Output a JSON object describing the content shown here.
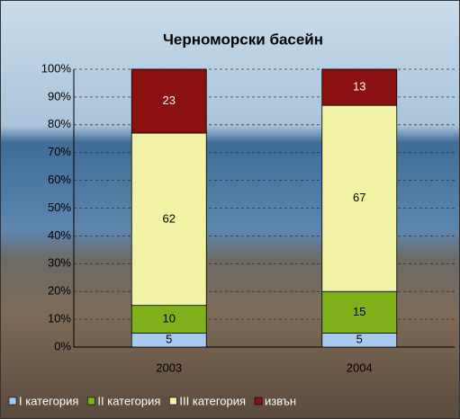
{
  "chart_data": {
    "type": "stacked-bar-100",
    "title": "Черноморски басейн",
    "categories": [
      "2003",
      "2004"
    ],
    "series": [
      {
        "name": "I категория",
        "color": "#a6caf0",
        "values": [
          5,
          5
        ]
      },
      {
        "name": "II категория",
        "color": "#7fb21a",
        "values": [
          10,
          15
        ]
      },
      {
        "name": "III категория",
        "color": "#f3f3a6",
        "values": [
          62,
          67
        ]
      },
      {
        "name": "извън",
        "color": "#8b1010",
        "values": [
          23,
          13
        ]
      }
    ],
    "ylim": [
      0,
      100
    ],
    "yticks": [
      {
        "value": 0,
        "label": "0%"
      },
      {
        "value": 10,
        "label": "10%"
      },
      {
        "value": 20,
        "label": "20%"
      },
      {
        "value": 30,
        "label": "30%"
      },
      {
        "value": 40,
        "label": "40%"
      },
      {
        "value": 50,
        "label": "50%"
      },
      {
        "value": 60,
        "label": "60%"
      },
      {
        "value": 70,
        "label": "70%"
      },
      {
        "value": 80,
        "label": "80%"
      },
      {
        "value": 90,
        "label": "90%"
      },
      {
        "value": 100,
        "label": "100%"
      }
    ],
    "grid": true,
    "legend": "bottom"
  }
}
